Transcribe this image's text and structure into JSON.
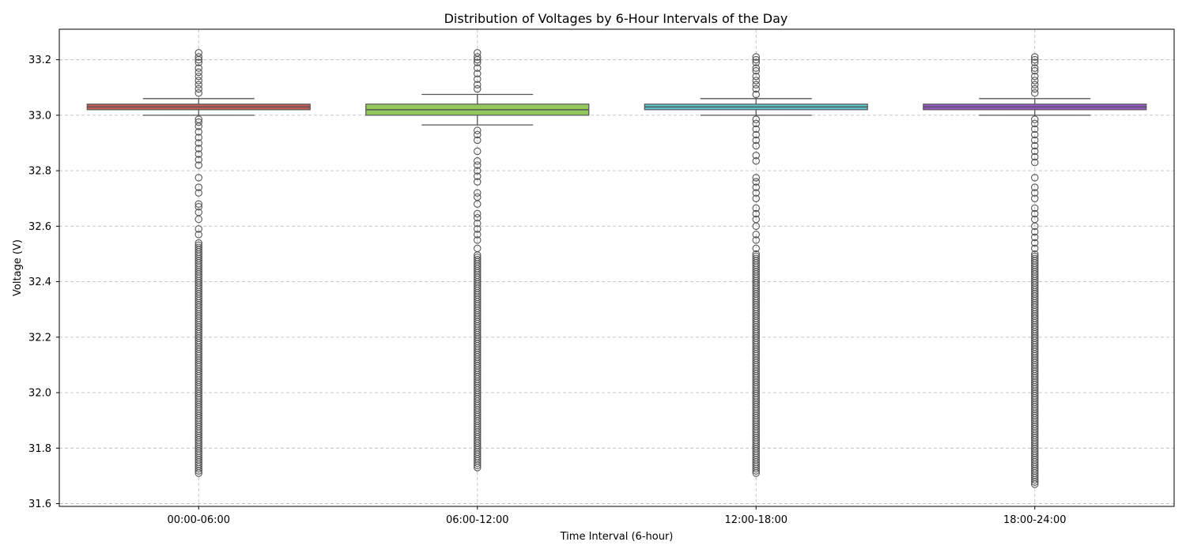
{
  "chart_data": {
    "type": "box",
    "title": "Distribution of Voltages by 6-Hour Intervals of the Day",
    "xlabel": "Time Interval (6-hour)",
    "ylabel": "Voltage (V)",
    "ylim": [
      31.59,
      33.31
    ],
    "yticks": [
      "31.6",
      "31.8",
      "32.0",
      "32.2",
      "32.4",
      "32.6",
      "32.8",
      "33.0",
      "33.2"
    ],
    "grid": true,
    "categories": [
      "00:00-06:00",
      "06:00-12:00",
      "12:00-18:00",
      "18:00-24:00"
    ],
    "colors": [
      "#cc5b52",
      "#93c95a",
      "#5bc7d0",
      "#9a56cc"
    ],
    "boxes": [
      {
        "category": "00:00-06:00",
        "whisker_low": 33.0,
        "q1": 33.02,
        "median": 33.03,
        "q3": 33.04,
        "whisker_high": 33.06,
        "outliers_high": [
          33.08,
          33.095,
          33.11,
          33.125,
          33.14,
          33.155,
          33.17,
          33.19,
          33.2,
          33.21,
          33.225
        ],
        "outliers_low_dense": [
          31.71,
          32.54
        ],
        "outliers_low_sparse": [
          32.57,
          32.59,
          32.625,
          32.65,
          32.67,
          32.68,
          32.72,
          32.74,
          32.775,
          32.82,
          32.84,
          32.86,
          32.88,
          32.9,
          32.92,
          32.94,
          32.96,
          32.975,
          32.985
        ]
      },
      {
        "category": "06:00-12:00",
        "whisker_low": 32.965,
        "q1": 33.0,
        "median": 33.02,
        "q3": 33.04,
        "whisker_high": 33.075,
        "outliers_high": [
          33.095,
          33.11,
          33.13,
          33.15,
          33.17,
          33.19,
          33.2,
          33.21,
          33.225
        ],
        "outliers_low_dense": [
          31.73,
          32.5
        ],
        "outliers_low_sparse": [
          32.52,
          32.55,
          32.57,
          32.59,
          32.61,
          32.63,
          32.645,
          32.68,
          32.705,
          32.72,
          32.76,
          32.78,
          32.8,
          32.82,
          32.835,
          32.87,
          32.91,
          32.93,
          32.945
        ]
      },
      {
        "category": "12:00-18:00",
        "whisker_low": 33.0,
        "q1": 33.02,
        "median": 33.03,
        "q3": 33.04,
        "whisker_high": 33.06,
        "outliers_high": [
          33.075,
          33.095,
          33.11,
          33.125,
          33.14,
          33.16,
          33.17,
          33.19,
          33.2,
          33.21
        ],
        "outliers_low_dense": [
          31.71,
          32.5
        ],
        "outliers_low_sparse": [
          32.52,
          32.55,
          32.57,
          32.6,
          32.625,
          32.645,
          32.665,
          32.7,
          32.72,
          32.74,
          32.76,
          32.775,
          32.835,
          32.855,
          32.89,
          32.91,
          32.93,
          32.95,
          32.97,
          32.985
        ]
      },
      {
        "category": "18:00-24:00",
        "whisker_low": 33.0,
        "q1": 33.02,
        "median": 33.03,
        "q3": 33.04,
        "whisker_high": 33.06,
        "outliers_high": [
          33.08,
          33.095,
          33.11,
          33.125,
          33.14,
          33.16,
          33.17,
          33.19,
          33.2,
          33.21
        ],
        "outliers_low_dense": [
          31.67,
          32.5
        ],
        "outliers_low_sparse": [
          32.52,
          32.54,
          32.56,
          32.58,
          32.6,
          32.625,
          32.645,
          32.665,
          32.7,
          32.72,
          32.74,
          32.775,
          32.83,
          32.85,
          32.87,
          32.89,
          32.91,
          32.93,
          32.95,
          32.97,
          32.985
        ]
      }
    ]
  }
}
